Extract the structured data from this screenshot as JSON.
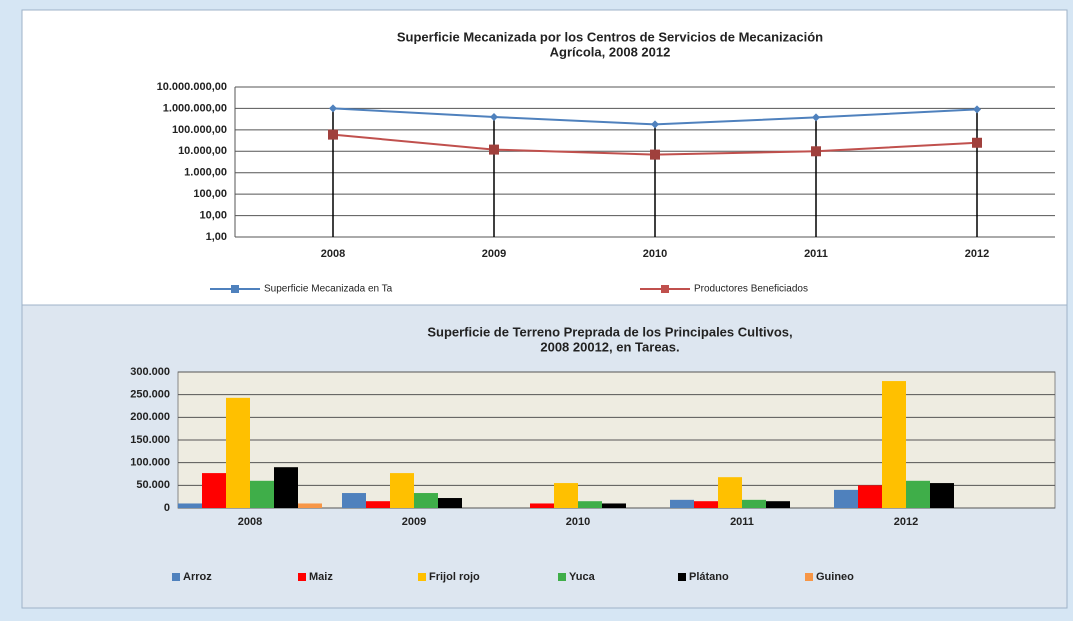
{
  "chart_data": [
    {
      "type": "line",
      "title": [
        "Superficie Mecanizada por los Centros de Servicios de Mecanización",
        "Agrícola, 2008 2012"
      ],
      "categories": [
        "2008",
        "2009",
        "2010",
        "2011",
        "2012"
      ],
      "series": [
        {
          "name": "Superficie Mecanizada en Ta",
          "color": "#4f81bd",
          "values": [
            1000000,
            400000,
            180000,
            380000,
            900000
          ]
        },
        {
          "name": "Productores Beneficiados",
          "color": "#c0504d",
          "values": [
            60000,
            12000,
            7000,
            10000,
            25000
          ]
        }
      ],
      "log_scale": true,
      "ylim": [
        1,
        10000000
      ],
      "yticks": [
        {
          "value": 10000000,
          "label": "10.000.000,00"
        },
        {
          "value": 1000000,
          "label": "1.000.000,00"
        },
        {
          "value": 100000,
          "label": "100.000,00"
        },
        {
          "value": 10000,
          "label": "10.000,00"
        },
        {
          "value": 1000,
          "label": "1.000,00"
        },
        {
          "value": 100,
          "label": "100,00"
        },
        {
          "value": 10,
          "label": "10,00"
        },
        {
          "value": 1,
          "label": "1,00"
        }
      ],
      "grid": true,
      "legend": "bottom"
    },
    {
      "type": "bar",
      "title": [
        "Superficie de Terreno Preprada de los Principales Cultivos,",
        "2008 20012, en Tareas."
      ],
      "categories": [
        "2008",
        "2009",
        "2010",
        "2011",
        "2012"
      ],
      "series": [
        {
          "name": "Arroz",
          "color": "#4f81bd",
          "values": [
            10000,
            33000,
            0,
            18000,
            40000
          ]
        },
        {
          "name": "Maiz",
          "color": "#ff0000",
          "values": [
            77000,
            15000,
            10000,
            15000,
            50000
          ]
        },
        {
          "name": "Frijol rojo",
          "color": "#ffc000",
          "values": [
            243000,
            77000,
            55000,
            68000,
            280000
          ]
        },
        {
          "name": "Yuca",
          "color": "#3fae49",
          "values": [
            60000,
            33000,
            15000,
            18000,
            60000
          ]
        },
        {
          "name": "Plátano",
          "color": "#000000",
          "values": [
            90000,
            22000,
            10000,
            15000,
            55000
          ]
        },
        {
          "name": "Guineo",
          "color": "#f79646",
          "values": [
            10000,
            0,
            0,
            0,
            0
          ]
        }
      ],
      "ylim": [
        0,
        300000
      ],
      "yticks": [
        {
          "value": 300000,
          "label": "300.000"
        },
        {
          "value": 250000,
          "label": "250.000"
        },
        {
          "value": 200000,
          "label": "200.000"
        },
        {
          "value": 150000,
          "label": "150.000"
        },
        {
          "value": 100000,
          "label": "100.000"
        },
        {
          "value": 50000,
          "label": "50.000"
        },
        0
      ],
      "grid": true,
      "legend": "bottom"
    }
  ]
}
